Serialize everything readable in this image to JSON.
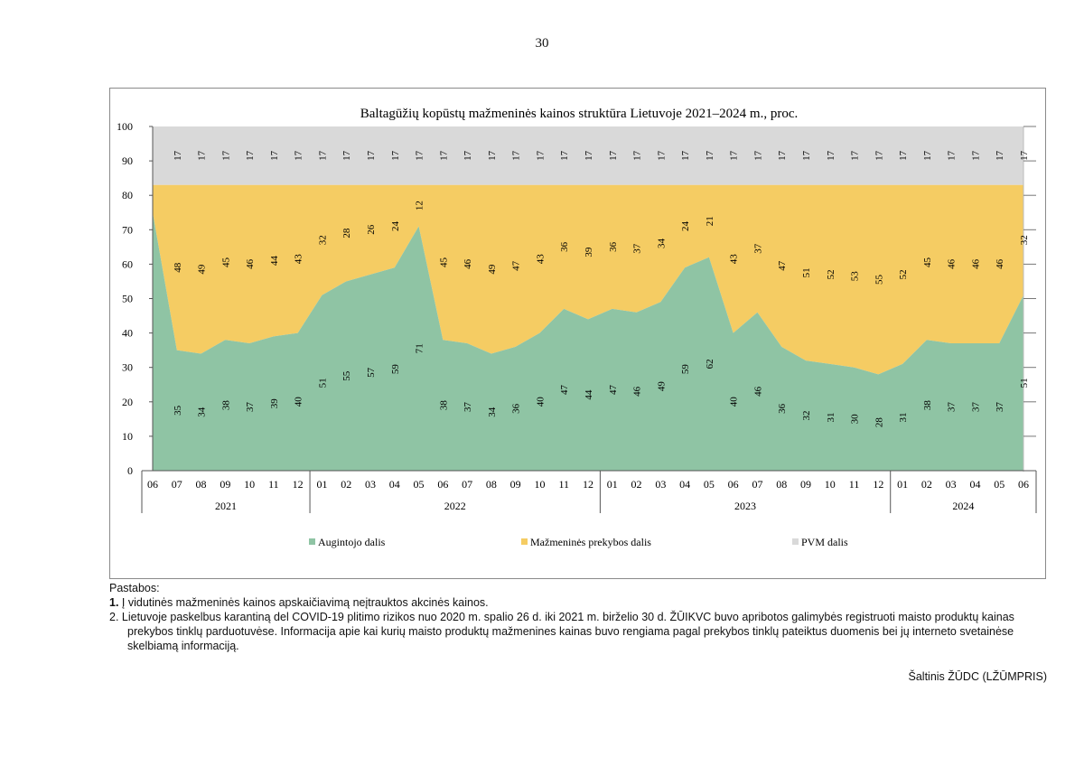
{
  "page_number": "30",
  "colors": {
    "grower": "#8fc4a4",
    "retail": "#f5cc63",
    "vat": "#d9d9d9"
  },
  "chart_data": {
    "type": "area",
    "stacked": true,
    "title": "Baltagūžių kopūstų mažmeninės kainos struktūra Lietuvoje 2021–2024 m., proc.",
    "ylim": [
      0,
      100
    ],
    "yticks": [
      "0",
      "10",
      "20",
      "30",
      "40",
      "50",
      "60",
      "70",
      "80",
      "90",
      "100"
    ],
    "categories": [
      "06",
      "07",
      "08",
      "09",
      "10",
      "11",
      "12",
      "01",
      "02",
      "03",
      "04",
      "05",
      "06",
      "07",
      "08",
      "09",
      "10",
      "11",
      "12",
      "01",
      "02",
      "03",
      "04",
      "05",
      "06",
      "07",
      "08",
      "09",
      "10",
      "11",
      "12",
      "01",
      "02",
      "03",
      "04",
      "05",
      "06"
    ],
    "year_groups": [
      {
        "label": "2021",
        "count": 7
      },
      {
        "label": "2022",
        "count": 12
      },
      {
        "label": "2023",
        "count": 12
      },
      {
        "label": "2024",
        "count": 6
      }
    ],
    "series": [
      {
        "name": "Augintojo dalis",
        "values": [
          75,
          35,
          34,
          38,
          37,
          39,
          40,
          51,
          55,
          57,
          59,
          71,
          38,
          37,
          34,
          36,
          40,
          47,
          44,
          47,
          46,
          49,
          59,
          62,
          40,
          46,
          36,
          32,
          31,
          30,
          28,
          31,
          38,
          37,
          37,
          37,
          51
        ],
        "labels": [
          "",
          "35",
          "34",
          "38",
          "37",
          "39",
          "40",
          "51",
          "55",
          "57",
          "59",
          "71",
          "38",
          "37",
          "34",
          "36",
          "40",
          "47",
          "44",
          "47",
          "46",
          "49",
          "59",
          "62",
          "40",
          "46",
          "36",
          "32",
          "31",
          "30",
          "28",
          "31",
          "38",
          "37",
          "37",
          "37",
          "51"
        ]
      },
      {
        "name": "Mažmeninės prekybos dalis",
        "values": [
          8,
          48,
          49,
          45,
          46,
          44,
          43,
          32,
          28,
          26,
          24,
          12,
          45,
          46,
          49,
          47,
          43,
          36,
          39,
          36,
          37,
          34,
          24,
          21,
          43,
          37,
          47,
          51,
          52,
          53,
          55,
          52,
          45,
          46,
          46,
          46,
          32
        ],
        "labels": [
          "",
          "48",
          "49",
          "45",
          "46",
          "44",
          "43",
          "32",
          "28",
          "26",
          "24",
          "12",
          "45",
          "46",
          "49",
          "47",
          "43",
          "36",
          "39",
          "36",
          "37",
          "34",
          "24",
          "21",
          "43",
          "37",
          "47",
          "51",
          "52",
          "53",
          "55",
          "52",
          "45",
          "46",
          "46",
          "46",
          "32"
        ]
      },
      {
        "name": "PVM dalis",
        "values": [
          17,
          17,
          17,
          17,
          17,
          17,
          17,
          17,
          17,
          17,
          17,
          17,
          17,
          17,
          17,
          17,
          17,
          17,
          17,
          17,
          17,
          17,
          17,
          17,
          17,
          17,
          17,
          17,
          17,
          17,
          17,
          17,
          17,
          17,
          17,
          17,
          17
        ],
        "labels": [
          "",
          "17",
          "17",
          "17",
          "17",
          "17",
          "17",
          "17",
          "17",
          "17",
          "17",
          "17",
          "17",
          "17",
          "17",
          "17",
          "17",
          "17",
          "17",
          "17",
          "17",
          "17",
          "17",
          "17",
          "17",
          "17",
          "17",
          "17",
          "17",
          "17",
          "17",
          "17",
          "17",
          "17",
          "17",
          "17",
          "17"
        ]
      }
    ],
    "legend": [
      "Augintojo dalis",
      "Mažmeninės prekybos dalis",
      "PVM dalis"
    ],
    "legend_position": "bottom"
  },
  "notes": {
    "title": "Pastabos:",
    "line1_num": "1.",
    "line1_text": " Į vidutinės mažmeninės kainos apskaičiavimą neįtrauktos akcinės kainos.",
    "line2": "2. Lietuvoje paskelbus karantiną del COVID-19 plitimo rizikos nuo 2020 m. spalio 26 d. iki 2021 m. birželio 30 d. ŽŪIKVC buvo apribotos galimybės registruoti maisto produktų kainas prekybos tinklų parduotuvėse. Informacija apie kai kurių maisto produktų mažmenines kainas buvo rengiama pagal prekybos tinklų pateiktus duomenis bei jų interneto svetainėse skelbiamą informaciją."
  },
  "source": "Šaltinis ŽŪDC (LŽŪMPRIS)"
}
